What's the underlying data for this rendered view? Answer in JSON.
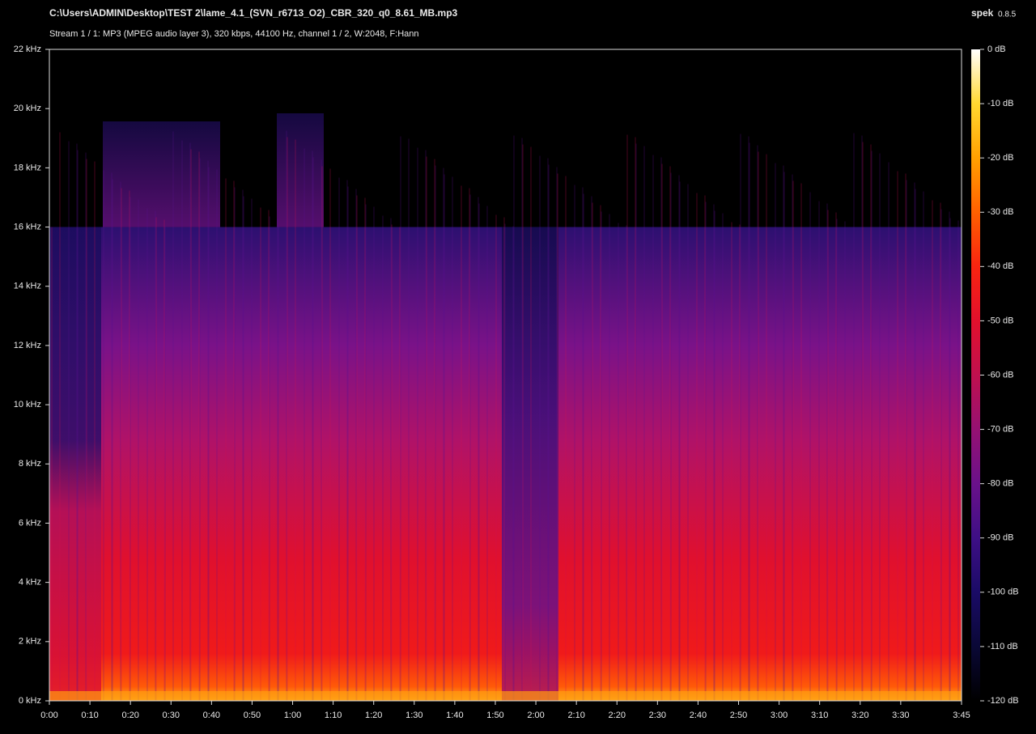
{
  "chart_data": {
    "type": "spectrogram",
    "title": "C:\\Users\\ADMIN\\Desktop\\TEST 2\\lame_4.1_(SVN_r6713_O2)_CBR_320_q0_8.61_MB.mp3",
    "subtitle": "Stream 1 / 1: MP3 (MPEG audio layer 3), 320 kbps, 44100 Hz, channel 1 / 2, W:2048, F:Hann",
    "app_name": "spek",
    "app_version": "0.8.5",
    "xlim": [
      0,
      225
    ],
    "xticks": [
      {
        "value": 0,
        "label": "0:00"
      },
      {
        "value": 10,
        "label": "0:10"
      },
      {
        "value": 20,
        "label": "0:20"
      },
      {
        "value": 30,
        "label": "0:30"
      },
      {
        "value": 40,
        "label": "0:40"
      },
      {
        "value": 50,
        "label": "0:50"
      },
      {
        "value": 60,
        "label": "1:00"
      },
      {
        "value": 70,
        "label": "1:10"
      },
      {
        "value": 80,
        "label": "1:20"
      },
      {
        "value": 90,
        "label": "1:30"
      },
      {
        "value": 100,
        "label": "1:40"
      },
      {
        "value": 110,
        "label": "1:50"
      },
      {
        "value": 120,
        "label": "2:00"
      },
      {
        "value": 130,
        "label": "2:10"
      },
      {
        "value": 140,
        "label": "2:20"
      },
      {
        "value": 150,
        "label": "2:30"
      },
      {
        "value": 160,
        "label": "2:40"
      },
      {
        "value": 170,
        "label": "2:50"
      },
      {
        "value": 180,
        "label": "3:00"
      },
      {
        "value": 190,
        "label": "3:10"
      },
      {
        "value": 200,
        "label": "3:20"
      },
      {
        "value": 210,
        "label": "3:30"
      },
      {
        "value": 225,
        "label": "3:45"
      }
    ],
    "ylim": [
      0,
      22
    ],
    "yticks": [
      {
        "value": 0,
        "label": "0 kHz"
      },
      {
        "value": 2,
        "label": "2 kHz"
      },
      {
        "value": 4,
        "label": "4 kHz"
      },
      {
        "value": 6,
        "label": "6 kHz"
      },
      {
        "value": 8,
        "label": "8 kHz"
      },
      {
        "value": 10,
        "label": "10 kHz"
      },
      {
        "value": 12,
        "label": "12 kHz"
      },
      {
        "value": 14,
        "label": "14 kHz"
      },
      {
        "value": 16,
        "label": "16 kHz"
      },
      {
        "value": 18,
        "label": "18 kHz"
      },
      {
        "value": 20,
        "label": "20 kHz"
      },
      {
        "value": 22,
        "label": "22 kHz"
      }
    ],
    "zlim": [
      -120,
      0
    ],
    "zticks": [
      {
        "value": 0,
        "label": "0 dB"
      },
      {
        "value": -10,
        "label": "-10 dB"
      },
      {
        "value": -20,
        "label": "-20 dB"
      },
      {
        "value": -30,
        "label": "-30 dB"
      },
      {
        "value": -40,
        "label": "-40 dB"
      },
      {
        "value": -50,
        "label": "-50 dB"
      },
      {
        "value": -60,
        "label": "-60 dB"
      },
      {
        "value": -70,
        "label": "-70 dB"
      },
      {
        "value": -80,
        "label": "-80 dB"
      },
      {
        "value": -90,
        "label": "-90 dB"
      },
      {
        "value": -100,
        "label": "-100 dB"
      },
      {
        "value": -110,
        "label": "-110 dB"
      },
      {
        "value": -120,
        "label": "-120 dB"
      }
    ],
    "colormap": [
      "#000000",
      "#0a0836",
      "#1a0b66",
      "#3e0f86",
      "#6a118a",
      "#961172",
      "#c0104e",
      "#e2102c",
      "#f82410",
      "#ff6000",
      "#ffa000",
      "#ffd830",
      "#ffffff"
    ]
  }
}
